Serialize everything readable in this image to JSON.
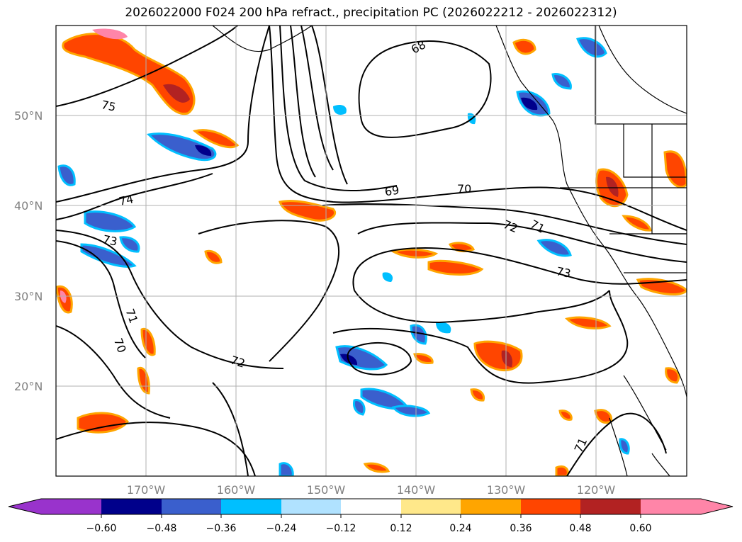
{
  "title": "2026022000 F024 200 hPa refract., precipitation PC (2026022212 - 2026022312)",
  "map": {
    "lon_labels": [
      "170°W",
      "160°W",
      "150°W",
      "140°W",
      "130°W",
      "120°W"
    ],
    "lat_labels": [
      "50°N",
      "40°N",
      "30°N",
      "20°N"
    ],
    "contour_labels": [
      "68",
      "69",
      "70",
      "70",
      "71",
      "71",
      "71",
      "72",
      "72",
      "73",
      "73",
      "74",
      "75"
    ]
  },
  "colorbar": {
    "tick_labels": [
      "−0.60",
      "−0.48",
      "−0.36",
      "−0.24",
      "−0.12",
      "0.12",
      "0.24",
      "0.36",
      "0.48",
      "0.60"
    ],
    "colors": [
      "#9933cc",
      "#00008b",
      "#3a5fcd",
      "#00bfff",
      "#b0e2ff",
      "#ffffff",
      "#ffe88a",
      "#ffa500",
      "#ff4500",
      "#b22222",
      "#ff85a8",
      "#ff85a8"
    ]
  },
  "chart_data": {
    "type": "heatmap",
    "title": "2026022000 F024 200 hPa refract., precipitation PC (2026022212 - 2026022312)",
    "x_ticks": [
      "170°W",
      "160°W",
      "150°W",
      "140°W",
      "130°W",
      "120°W"
    ],
    "y_ticks": [
      "50°N",
      "40°N",
      "30°N",
      "20°N"
    ],
    "xlim": [
      -180,
      -110
    ],
    "ylim": [
      10,
      60
    ],
    "contour_levels": [
      68,
      69,
      70,
      71,
      72,
      73,
      74,
      75
    ],
    "colorbar_levels": [
      -0.6,
      -0.48,
      -0.36,
      -0.24,
      -0.12,
      0.12,
      0.24,
      0.36,
      0.48,
      0.6
    ],
    "grid": true
  }
}
